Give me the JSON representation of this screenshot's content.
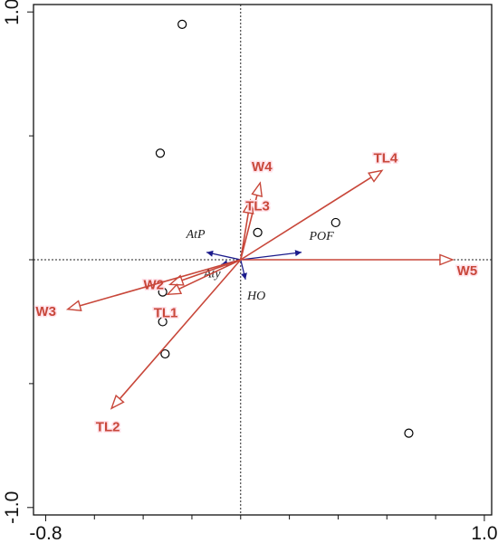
{
  "chart_data": {
    "type": "scatter",
    "subtype": "ordination-biplot",
    "title": "",
    "xlabel": "",
    "ylabel": "",
    "xlim": [
      -0.85,
      1.03
    ],
    "ylim": [
      -1.03,
      1.03
    ],
    "x_ticks": [
      {
        "value": -0.8,
        "label": "-0.8"
      },
      {
        "value": 1.0,
        "label": "1.0"
      }
    ],
    "y_ticks": [
      {
        "value": 1.0,
        "label": "1.0"
      },
      {
        "value": -1.0,
        "label": "-1.0"
      }
    ],
    "y_minor_ticks": [
      0.5,
      0.0,
      -0.5
    ],
    "x_minor_ticks": [
      -0.6,
      -0.4,
      -0.2,
      0.0,
      0.2,
      0.4,
      0.6,
      0.8
    ],
    "zero_lines": true,
    "grid": false,
    "colors": {
      "response": "#c8473a",
      "environment": "#1c1c8c",
      "sites": "#000000"
    },
    "sites": [
      {
        "x": -0.24,
        "y": 0.95
      },
      {
        "x": -0.33,
        "y": 0.43
      },
      {
        "x": 0.07,
        "y": 0.11
      },
      {
        "x": 0.39,
        "y": 0.15
      },
      {
        "x": -0.32,
        "y": -0.13
      },
      {
        "x": -0.32,
        "y": -0.25
      },
      {
        "x": -0.31,
        "y": -0.38
      },
      {
        "x": 0.69,
        "y": -0.7
      }
    ],
    "response_arrows": [
      {
        "name": "TL4",
        "x": 0.58,
        "y": 0.36
      },
      {
        "name": "W4",
        "x": 0.08,
        "y": 0.31
      },
      {
        "name": "TL3",
        "x": 0.04,
        "y": 0.24
      },
      {
        "name": "W5",
        "x": 0.87,
        "y": 0.0
      },
      {
        "name": "W2",
        "x": -0.29,
        "y": -0.1
      },
      {
        "name": "TL1",
        "x": -0.3,
        "y": -0.14
      },
      {
        "name": "W3",
        "x": -0.71,
        "y": -0.2
      },
      {
        "name": "TL2",
        "x": -0.53,
        "y": -0.6
      }
    ],
    "environment_arrows": [
      {
        "name": "AtP",
        "x": -0.14,
        "y": 0.03
      },
      {
        "name": "Aty",
        "x": -0.08,
        "y": -0.02
      },
      {
        "name": "POF",
        "x": 0.25,
        "y": 0.03
      },
      {
        "name": "HO",
        "x": 0.02,
        "y": -0.08
      }
    ]
  }
}
